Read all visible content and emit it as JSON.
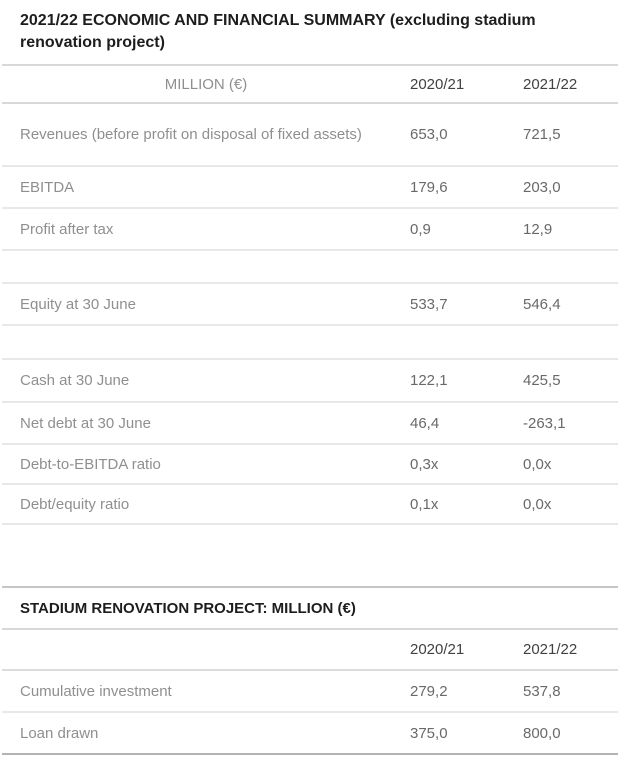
{
  "tables": [
    {
      "name": "economic-financial-summary",
      "title": "2021/22 ECONOMIC AND FINANCIAL SUMMARY (excluding stadium renovation project)",
      "columns": [
        "MILLION (€)",
        "2020/21",
        "2021/22"
      ],
      "rows": [
        {
          "label": "Revenues (before profit on disposal of fixed assets)",
          "values": [
            "653,0",
            "721,5"
          ]
        },
        {
          "label": "EBITDA",
          "values": [
            "179,6",
            "203,0"
          ]
        },
        {
          "label": "Profit after tax",
          "values": [
            "0,9",
            "12,9"
          ]
        },
        {
          "label": "",
          "values": [
            "",
            ""
          ],
          "spacer": true
        },
        {
          "label": "Equity at 30 June",
          "values": [
            "533,7",
            "546,4"
          ]
        },
        {
          "label": "",
          "values": [
            "",
            ""
          ],
          "spacer": true
        },
        {
          "label": "Cash at 30 June",
          "values": [
            "122,1",
            "425,5"
          ]
        },
        {
          "label": "Net debt at 30 June",
          "values": [
            "46,4",
            "-263,1"
          ]
        },
        {
          "label": "Debt-to-EBITDA ratio",
          "values": [
            "0,3x",
            "0,0x"
          ]
        },
        {
          "label": "Debt/equity ratio",
          "values": [
            "0,1x",
            "0,0x"
          ]
        }
      ]
    },
    {
      "name": "stadium-renovation-project",
      "title": "STADIUM RENOVATION PROJECT: MILLION (€)",
      "columns": [
        "",
        "2020/21",
        "2021/22"
      ],
      "rows": [
        {
          "label": "Cumulative investment",
          "values": [
            "279,2",
            "537,8"
          ]
        },
        {
          "label": "Loan drawn",
          "values": [
            "375,0",
            "800,0"
          ]
        }
      ]
    }
  ],
  "colors": {
    "title_text": "#1d1d1d",
    "year_header_text": "#414141",
    "row_label_text": "#8f8f8f",
    "value_text": "#696969",
    "row_divider": "#e8e8e8",
    "header_divider": "#d8d8d8",
    "stadium_table_top_border": "#c6c6c6",
    "stadium_table_bottom_border": "#b3b3b3",
    "background": "#ffffff"
  }
}
